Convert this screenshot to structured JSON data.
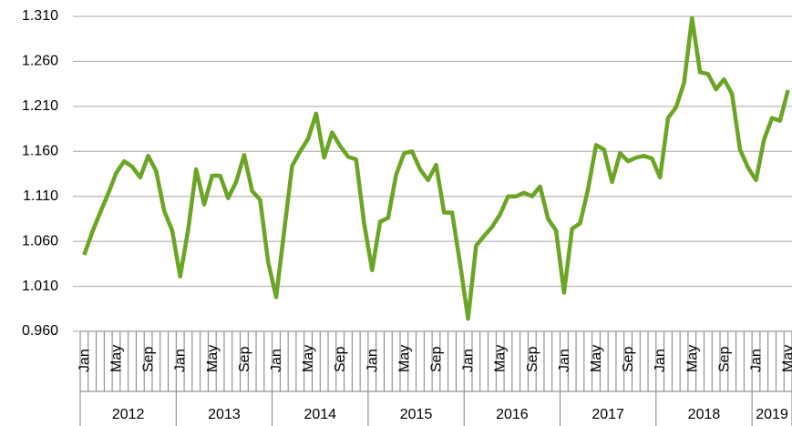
{
  "chart_data": {
    "type": "line",
    "categories": [
      "Jan",
      null,
      null,
      null,
      "May",
      null,
      null,
      null,
      "Sep",
      null,
      null,
      null,
      "Jan",
      null,
      null,
      null,
      "May",
      null,
      null,
      null,
      "Sep",
      null,
      null,
      null,
      "Jan",
      null,
      null,
      null,
      "May",
      null,
      null,
      null,
      "Sep",
      null,
      null,
      null,
      "Jan",
      null,
      null,
      null,
      "May",
      null,
      null,
      null,
      "Sep",
      null,
      null,
      null,
      "Jan",
      null,
      null,
      null,
      "May",
      null,
      null,
      null,
      "Sep",
      null,
      null,
      null,
      "Jan",
      null,
      null,
      null,
      "May",
      null,
      null,
      null,
      "Sep",
      null,
      null,
      null,
      "Jan",
      null,
      null,
      null,
      "May",
      null,
      null,
      null,
      "Sep",
      null,
      null,
      null,
      "Jan",
      null,
      null,
      null,
      "May"
    ],
    "year_groups": [
      "2012",
      "2013",
      "2014",
      "2015",
      "2016",
      "2017",
      "2018",
      "2019"
    ],
    "series": [
      {
        "color": "#6aa523",
        "values": [
          1.045,
          1.07,
          1.092,
          1.113,
          1.136,
          1.149,
          1.143,
          1.131,
          1.155,
          1.138,
          1.094,
          1.072,
          1.021,
          1.073,
          1.14,
          1.101,
          1.133,
          1.133,
          1.108,
          1.126,
          1.156,
          1.116,
          1.106,
          1.037,
          0.998,
          1.071,
          1.144,
          1.16,
          1.174,
          1.202,
          1.153,
          1.181,
          1.166,
          1.154,
          1.151,
          1.08,
          1.028,
          1.082,
          1.086,
          1.134,
          1.158,
          1.16,
          1.14,
          1.128,
          1.145,
          1.092,
          1.092,
          1.035,
          0.974,
          1.055,
          1.066,
          1.076,
          1.09,
          1.11,
          1.11,
          1.114,
          1.11,
          1.121,
          1.085,
          1.072,
          1.003,
          1.074,
          1.08,
          1.118,
          1.167,
          1.162,
          1.126,
          1.158,
          1.149,
          1.153,
          1.155,
          1.152,
          1.131,
          1.197,
          1.209,
          1.236,
          1.308,
          1.248,
          1.246,
          1.229,
          1.24,
          1.224,
          1.162,
          1.142,
          1.128,
          1.173,
          1.197,
          1.194,
          1.228
        ]
      }
    ],
    "ylim": [
      0.96,
      1.31
    ],
    "yticks": [
      {
        "value": 0.96,
        "label": "0.960"
      },
      {
        "value": 1.01,
        "label": "1.010"
      },
      {
        "value": 1.06,
        "label": "1.060"
      },
      {
        "value": 1.11,
        "label": "1.110"
      },
      {
        "value": 1.16,
        "label": "1.160"
      },
      {
        "value": 1.21,
        "label": "1.210"
      },
      {
        "value": 1.26,
        "label": "1.260"
      },
      {
        "value": 1.31,
        "label": "1.310"
      }
    ],
    "grid": true
  }
}
